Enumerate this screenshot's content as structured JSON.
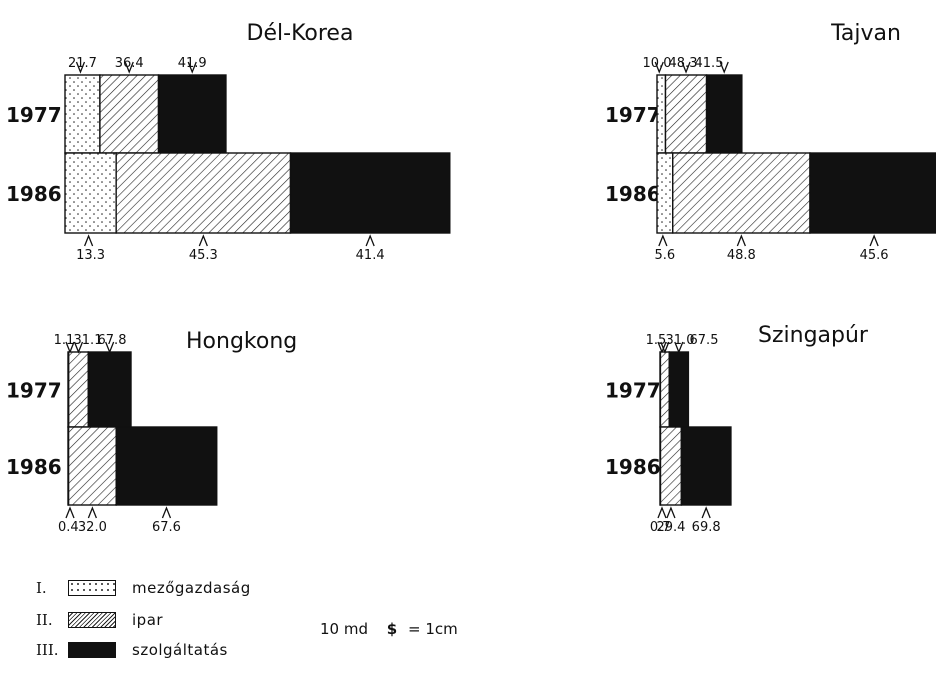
{
  "chart_data": [
    {
      "type": "bar",
      "title": "Dél-Korea",
      "categories": [
        "1977",
        "1986"
      ],
      "series": [
        {
          "name": "mezőgazdaság",
          "values": [
            21.7,
            13.3
          ]
        },
        {
          "name": "ipar",
          "values": [
            36.4,
            45.3
          ]
        },
        {
          "name": "szolgáltatás",
          "values": [
            41.9,
            41.4
          ]
        }
      ],
      "label_text": [
        [
          "21.7",
          "36.4",
          "41.9"
        ],
        [
          "13.3",
          "45.3",
          "41.4"
        ]
      ],
      "totals": [
        43.5,
        104.0
      ]
    },
    {
      "type": "bar",
      "title": "Tajvan",
      "categories": [
        "1977",
        "1986"
      ],
      "series": [
        {
          "name": "mezőgazdaság",
          "values": [
            10.0,
            5.6
          ]
        },
        {
          "name": "ipar",
          "values": [
            48.3,
            48.8
          ]
        },
        {
          "name": "szolgáltatás",
          "values": [
            41.5,
            45.6
          ]
        }
      ],
      "label_text": [
        [
          "10.0",
          "48.3",
          "41.5"
        ],
        [
          "5.6",
          "48.8",
          "45.6"
        ]
      ],
      "totals": [
        26.0,
        86.0
      ]
    },
    {
      "type": "bar",
      "title": "Hongkong",
      "categories": [
        "1977",
        "1986"
      ],
      "series": [
        {
          "name": "mezőgazdaság",
          "values": [
            1.1,
            0.4
          ]
        },
        {
          "name": "ipar",
          "values": [
            31.1,
            32.0
          ]
        },
        {
          "name": "szolgáltatás",
          "values": [
            67.8,
            67.6
          ]
        }
      ],
      "label_text": [
        [
          "1.1",
          "31.1",
          "67.8"
        ],
        [
          "0.4",
          "32.0",
          "67.6"
        ]
      ],
      "totals": [
        18.0,
        42.5
      ]
    },
    {
      "type": "bar",
      "title": "Szingapúr",
      "categories": [
        "1977",
        "1986"
      ],
      "series": [
        {
          "name": "mezőgazdaság",
          "values": [
            1.5,
            0.7
          ]
        },
        {
          "name": "ipar",
          "values": [
            31.0,
            29.4
          ]
        },
        {
          "name": "szolgáltatás",
          "values": [
            67.5,
            69.8
          ]
        }
      ],
      "label_text": [
        [
          "1.5",
          "31.0",
          "67.5"
        ],
        [
          "0.7",
          "29.4",
          "69.8"
        ]
      ],
      "totals": [
        8.0,
        20.0
      ]
    }
  ],
  "legend": [
    {
      "roman": "I.",
      "label": "mezőgazdaság",
      "pattern": "dots"
    },
    {
      "roman": "II.",
      "label": "ipar",
      "pattern": "hatch"
    },
    {
      "roman": "III.",
      "label": "szolgáltatás",
      "pattern": "solid"
    }
  ],
  "scale": {
    "amount": "10 md",
    "symbol": "$",
    "equals": "= 1cm"
  },
  "colors": {
    "ink": "#111111",
    "background": "#ffffff"
  }
}
